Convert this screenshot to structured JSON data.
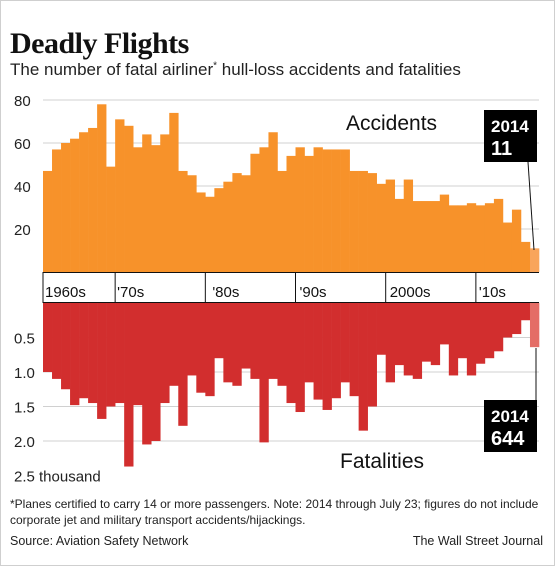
{
  "header": {
    "title": "Deadly Flights",
    "subtitle": "The number of fatal airliner* hull-loss accidents and fatalities"
  },
  "colors": {
    "accidents": "#f7922a",
    "accidents_partial": "#f9a55b",
    "fatalities": "#d22e2e",
    "fatalities_partial": "#e46d66",
    "callout_bg": "#000000",
    "callout_text": "#ffffff"
  },
  "chart_data": [
    {
      "type": "bar",
      "title": "Accidents",
      "x": [
        1960,
        1961,
        1962,
        1963,
        1964,
        1965,
        1966,
        1967,
        1968,
        1969,
        1970,
        1971,
        1972,
        1973,
        1974,
        1975,
        1976,
        1977,
        1978,
        1979,
        1980,
        1981,
        1982,
        1983,
        1984,
        1985,
        1986,
        1987,
        1988,
        1989,
        1990,
        1991,
        1992,
        1993,
        1994,
        1995,
        1996,
        1997,
        1998,
        1999,
        2000,
        2001,
        2002,
        2003,
        2004,
        2005,
        2006,
        2007,
        2008,
        2009,
        2010,
        2011,
        2012,
        2013,
        2014
      ],
      "values": [
        47,
        57,
        60,
        62,
        65,
        67,
        78,
        49,
        71,
        68,
        58,
        64,
        59,
        64,
        74,
        47,
        45,
        37,
        35,
        39,
        42,
        46,
        45,
        55,
        58,
        65,
        47,
        54,
        58,
        54,
        58,
        57,
        57,
        57,
        47,
        47,
        46,
        41,
        43,
        34,
        43,
        33,
        33,
        33,
        36,
        31,
        31,
        32,
        31,
        32,
        34,
        23,
        29,
        14,
        11
      ],
      "ylim": [
        0,
        80
      ],
      "yticks": [
        20,
        40,
        60,
        80
      ],
      "xticks": [
        "1960s",
        "'70s",
        "'80s",
        "'90s",
        "2000s",
        "'10s"
      ],
      "callout": {
        "year": "2014",
        "value": "11"
      }
    },
    {
      "type": "bar",
      "title": "Fatalities",
      "x": [
        1960,
        1961,
        1962,
        1963,
        1964,
        1965,
        1966,
        1967,
        1968,
        1969,
        1970,
        1971,
        1972,
        1973,
        1974,
        1975,
        1976,
        1977,
        1978,
        1979,
        1980,
        1981,
        1982,
        1983,
        1984,
        1985,
        1986,
        1987,
        1988,
        1989,
        1990,
        1991,
        1992,
        1993,
        1994,
        1995,
        1996,
        1997,
        1998,
        1999,
        2000,
        2001,
        2002,
        2003,
        2004,
        2005,
        2006,
        2007,
        2008,
        2009,
        2010,
        2011,
        2012,
        2013,
        2014
      ],
      "values": [
        1.0,
        1.1,
        1.25,
        1.48,
        1.38,
        1.45,
        1.68,
        1.5,
        1.45,
        2.37,
        1.48,
        2.05,
        2.0,
        1.45,
        1.2,
        1.78,
        1.05,
        1.3,
        1.35,
        0.8,
        1.15,
        1.2,
        0.95,
        1.1,
        2.02,
        1.1,
        1.2,
        1.45,
        1.58,
        1.15,
        1.4,
        1.55,
        1.38,
        1.15,
        1.35,
        1.85,
        1.5,
        0.75,
        1.15,
        0.9,
        1.05,
        1.1,
        0.85,
        0.9,
        0.6,
        1.05,
        0.8,
        1.05,
        0.88,
        0.8,
        0.7,
        0.5,
        0.45,
        0.25,
        0.64
      ],
      "unit": "thousand",
      "ylim": [
        0,
        2.5
      ],
      "yticks": [
        "0.5",
        "1.0",
        "1.5",
        "2.0",
        "2.5 thousand"
      ],
      "callout": {
        "year": "2014",
        "value": "644"
      }
    }
  ],
  "footer": {
    "note": "*Planes certified to carry 14 or more passengers.  Note: 2014 through July 23; figures do not include corporate jet and military transport accidents/hijackings.",
    "source": "Source: Aviation Safety Network",
    "credit": "The Wall Street Journal"
  }
}
